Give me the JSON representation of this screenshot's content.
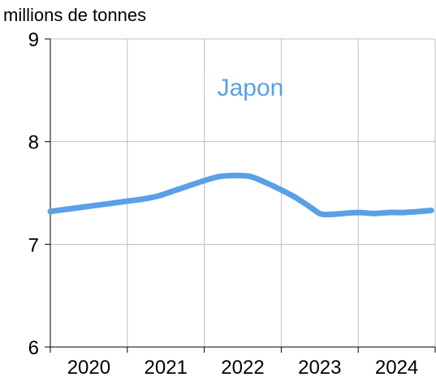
{
  "chart_data": {
    "type": "line",
    "ylabel": "millions de tonnes",
    "ylim": [
      6,
      9
    ],
    "yticks": [
      6,
      7,
      8,
      9
    ],
    "xlim": [
      2019.5,
      2024.5
    ],
    "xticks": [
      "2020",
      "2021",
      "2022",
      "2023",
      "2024"
    ],
    "grid": true,
    "series": [
      {
        "name": "Japon",
        "color": "#5AA0E6",
        "x": [
          2019.5,
          2019.7,
          2019.9,
          2020.1,
          2020.3,
          2020.5,
          2020.7,
          2020.9,
          2021.1,
          2021.3,
          2021.5,
          2021.7,
          2021.9,
          2022.1,
          2022.3,
          2022.5,
          2022.7,
          2022.9,
          2023.0,
          2023.1,
          2023.3,
          2023.5,
          2023.7,
          2023.9,
          2024.1,
          2024.3,
          2024.45
        ],
        "y": [
          7.32,
          7.34,
          7.36,
          7.38,
          7.4,
          7.42,
          7.44,
          7.47,
          7.52,
          7.57,
          7.62,
          7.66,
          7.67,
          7.66,
          7.6,
          7.53,
          7.45,
          7.35,
          7.3,
          7.29,
          7.3,
          7.31,
          7.3,
          7.31,
          7.31,
          7.32,
          7.33
        ]
      }
    ]
  }
}
